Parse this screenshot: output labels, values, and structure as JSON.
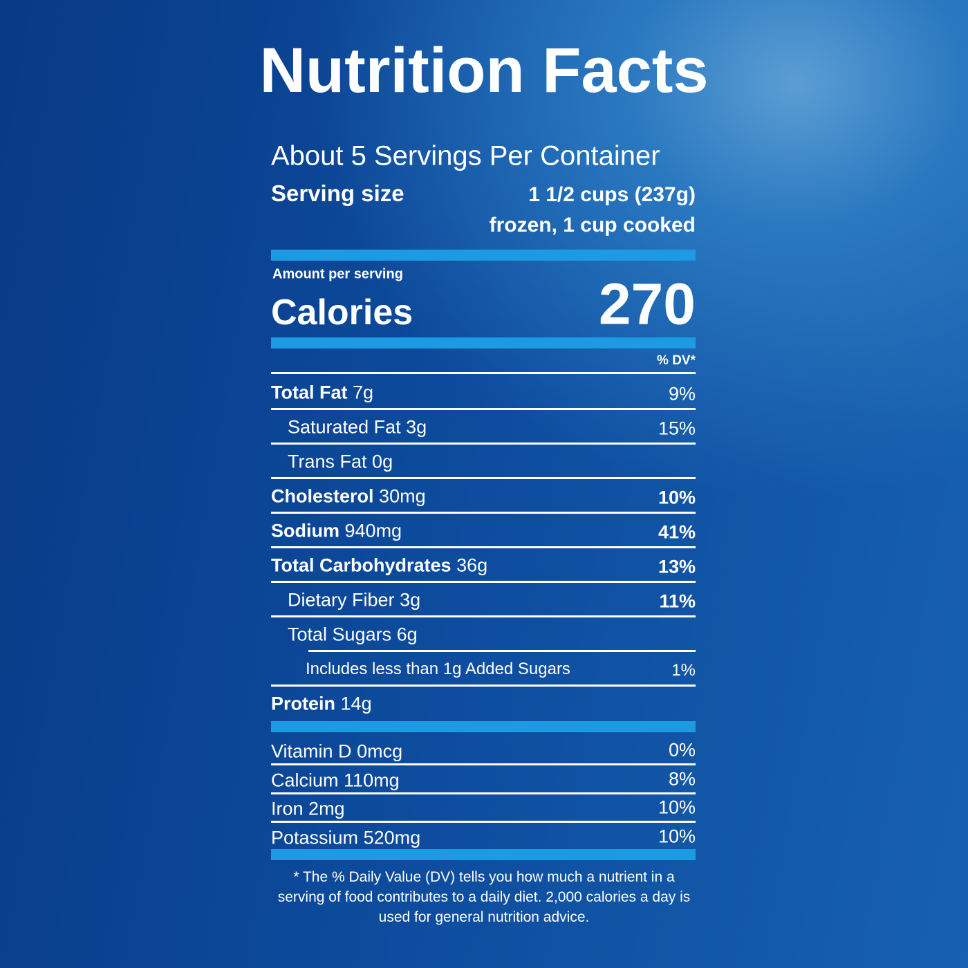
{
  "title": "Nutrition Facts",
  "servings": "About 5 Servings Per Container",
  "serving_size": {
    "label": "Serving size",
    "value_line1": "1 1/2 cups (237g)",
    "value_line2": "frozen, 1 cup cooked"
  },
  "amount_per_serving": "Amount per serving",
  "calories": {
    "label": "Calories",
    "value": 270
  },
  "dv_header": "% DV*",
  "nutrients": [
    {
      "name": "Total Fat",
      "amount": "7g",
      "dv": "9%"
    },
    {
      "name": "Saturated Fat",
      "amount": "3g",
      "dv": "15%"
    },
    {
      "name": "Trans Fat",
      "amount": "0g"
    },
    {
      "name": "Cholesterol",
      "amount": "30mg",
      "dv": "10%"
    },
    {
      "name": "Sodium",
      "amount": "940mg",
      "dv": "41%"
    },
    {
      "name": "Total Carbohydrates",
      "amount": "36g",
      "dv": "13%"
    },
    {
      "name": "Dietary Fiber",
      "amount": "3g",
      "dv": "11%"
    },
    {
      "name": "Total Sugars",
      "amount": "6g"
    },
    {
      "name": "Includes less than 1g Added Sugars",
      "dv": "1%"
    },
    {
      "name": "Protein",
      "amount": "14g"
    }
  ],
  "vitamins": [
    {
      "name": "Vitamin D",
      "amount": "0mcg",
      "dv": "0%"
    },
    {
      "name": "Calcium",
      "amount": "110mg",
      "dv": "8%"
    },
    {
      "name": "Iron",
      "amount": "2mg",
      "dv": "10%"
    },
    {
      "name": "Potassium",
      "amount": "520mg",
      "dv": "10%"
    }
  ],
  "footnote": "* The % Daily Value (DV) tells you how much a nutrient in a serving of food contributes to a daily diet. 2,000 calories a day is used for general nutrition advice."
}
